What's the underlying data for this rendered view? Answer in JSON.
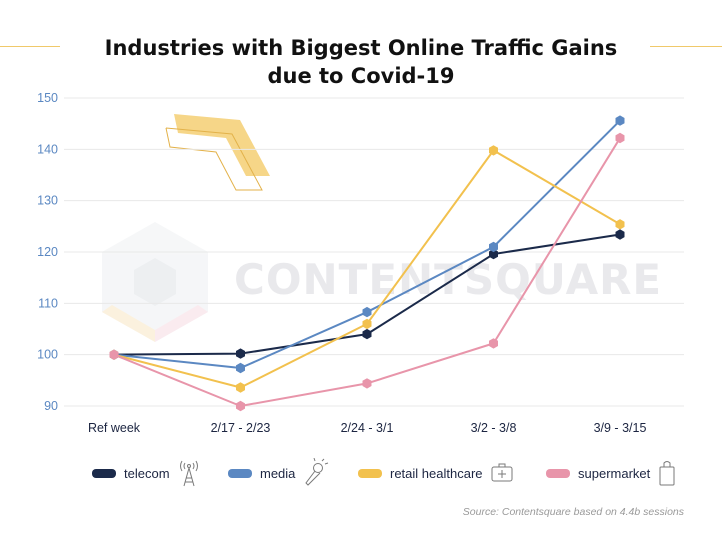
{
  "title_lines": [
    "Industries with Biggest Online Traffic Gains",
    "due to Covid-19"
  ],
  "watermark": "CONTENTSQUARE",
  "source": "Source: Contentsquare based on 4.4b sessions",
  "legend": [
    {
      "label": "telecom",
      "icon": "antenna-tower-icon"
    },
    {
      "label": "media",
      "icon": "microphone-icon"
    },
    {
      "label": "retail healthcare",
      "icon": "first-aid-kit-icon"
    },
    {
      "label": "supermarket",
      "icon": "shopping-bag-icon"
    }
  ],
  "chart_data": {
    "type": "line",
    "title": "Industries with Biggest Online Traffic Gains due to Covid-19",
    "categories": [
      "Ref week",
      "2/17 - 2/23",
      "2/24 - 3/1",
      "3/2 - 3/8",
      "3/9 - 3/15"
    ],
    "ylim": [
      90,
      150
    ],
    "yticks": [
      90,
      100,
      110,
      120,
      130,
      140,
      150
    ],
    "grid": true,
    "legend_position": "bottom",
    "series": [
      {
        "name": "telecom",
        "color": "#1b2a4a",
        "values": [
          100,
          100.2,
          104,
          119.6,
          123.4
        ]
      },
      {
        "name": "media",
        "color": "#5b88c2",
        "values": [
          100,
          97.4,
          108.3,
          121,
          145.6
        ]
      },
      {
        "name": "retail healthcare",
        "color": "#f2c14e",
        "values": [
          100,
          93.6,
          106,
          139.8,
          125.4
        ]
      },
      {
        "name": "supermarket",
        "color": "#e895aa",
        "values": [
          100,
          90,
          94.4,
          102.2,
          142.2
        ]
      }
    ]
  }
}
